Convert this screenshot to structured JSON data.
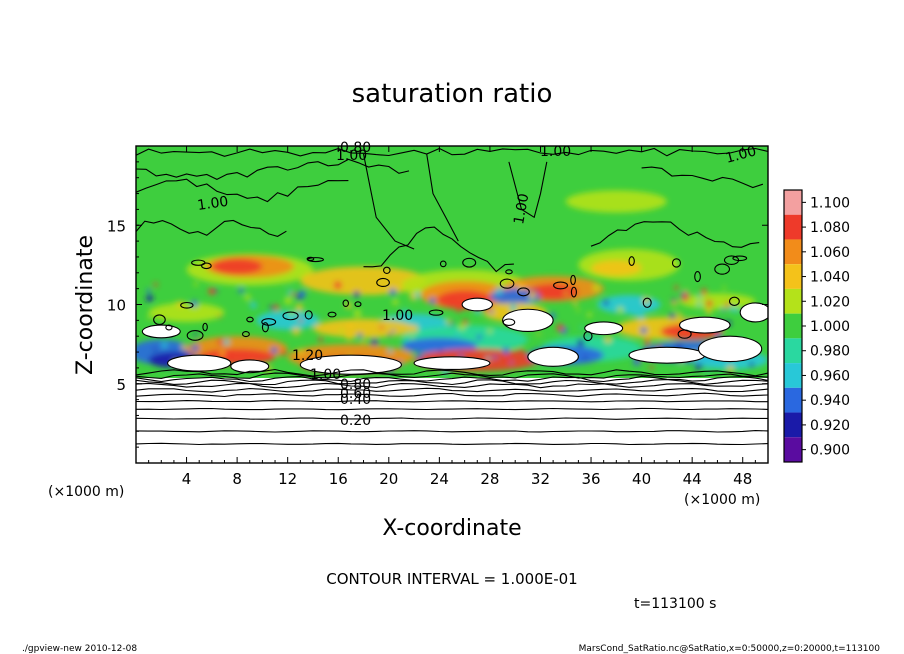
{
  "chart_data": {
    "type": "heatmap",
    "title": "saturation ratio",
    "xlabel": "X-coordinate",
    "ylabel": "Z-coordinate",
    "x_unit": "(×1000 m)",
    "y_unit": "(×1000 m)",
    "xlim": [
      0,
      50
    ],
    "ylim": [
      0,
      20
    ],
    "x_ticks": [
      4,
      8,
      12,
      16,
      20,
      24,
      28,
      32,
      36,
      40,
      44,
      48
    ],
    "y_ticks": [
      5,
      10,
      15
    ],
    "colorbar": {
      "values": [
        1.1,
        1.08,
        1.06,
        1.04,
        1.02,
        1.0,
        0.98,
        0.96,
        0.94,
        0.92,
        0.9
      ],
      "labels": [
        "1.100",
        "1.080",
        "1.060",
        "1.040",
        "1.020",
        "1.000",
        "0.980",
        "0.960",
        "0.940",
        "0.920",
        "0.900"
      ],
      "colors": [
        "#f3a0a0",
        "#ee3a2a",
        "#f28c1a",
        "#f4c21a",
        "#b4e21a",
        "#3ece3e",
        "#2ad8a0",
        "#28c8d8",
        "#2a68e0",
        "#1a1aa8",
        "#5a0ca0"
      ]
    },
    "contour_labels": [
      "0.80",
      "1.00",
      "1.00",
      "1.00",
      "1.00",
      "1.00",
      "1.00",
      "1.20",
      "1.00",
      "0.80",
      "0.60",
      "0.40",
      "0.20"
    ],
    "contour_interval": "CONTOUR INTERVAL = 1.000E-01",
    "time_label": "t=113100 s",
    "footer_left": "./gpview-new   2010-12-08",
    "footer_right": "MarsCond_SatRatio.nc@SatRatio,x=0:50000,z=0:20000,t=113100"
  }
}
